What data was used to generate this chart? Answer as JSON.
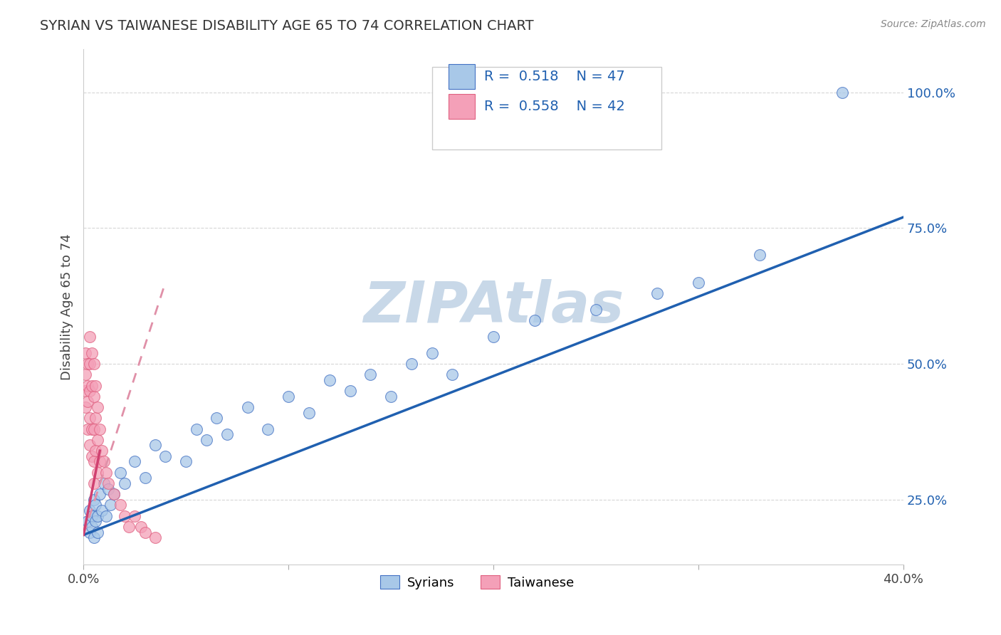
{
  "title": "SYRIAN VS TAIWANESE DISABILITY AGE 65 TO 74 CORRELATION CHART",
  "source_text": "Source: ZipAtlas.com",
  "ylabel": "Disability Age 65 to 74",
  "xlim": [
    0.0,
    0.4
  ],
  "ylim": [
    0.13,
    1.08
  ],
  "xtick_vals": [
    0.0,
    0.1,
    0.2,
    0.3,
    0.4
  ],
  "xtick_labels": [
    "0.0%",
    "",
    "",
    "",
    "40.0%"
  ],
  "ytick_vals": [
    0.25,
    0.5,
    0.75,
    1.0
  ],
  "ytick_labels": [
    "25.0%",
    "50.0%",
    "75.0%",
    "100.0%"
  ],
  "r_syrian": 0.518,
  "n_syrian": 47,
  "r_taiwanese": 0.558,
  "n_taiwanese": 42,
  "blue_scatter_color": "#a8c8e8",
  "blue_edge_color": "#4472c4",
  "pink_scatter_color": "#f4a0b8",
  "pink_edge_color": "#e06080",
  "blue_line_color": "#2060b0",
  "pink_line_color": "#d04070",
  "pink_dash_color": "#e090a8",
  "watermark": "ZIPAtlas",
  "watermark_color": "#c8d8e8",
  "legend_blue_fill": "#a8c8e8",
  "legend_pink_fill": "#f4a0b8",
  "legend_text_color": "#2060b0",
  "syrian_x": [
    0.002,
    0.003,
    0.003,
    0.004,
    0.004,
    0.005,
    0.005,
    0.006,
    0.006,
    0.007,
    0.007,
    0.008,
    0.009,
    0.01,
    0.011,
    0.012,
    0.013,
    0.015,
    0.018,
    0.02,
    0.025,
    0.03,
    0.035,
    0.04,
    0.05,
    0.055,
    0.06,
    0.065,
    0.07,
    0.08,
    0.09,
    0.1,
    0.11,
    0.12,
    0.13,
    0.14,
    0.15,
    0.16,
    0.17,
    0.18,
    0.2,
    0.22,
    0.25,
    0.28,
    0.3,
    0.33,
    0.37
  ],
  "syrian_y": [
    0.21,
    0.23,
    0.19,
    0.22,
    0.2,
    0.25,
    0.18,
    0.24,
    0.21,
    0.22,
    0.19,
    0.26,
    0.23,
    0.28,
    0.22,
    0.27,
    0.24,
    0.26,
    0.3,
    0.28,
    0.32,
    0.29,
    0.35,
    0.33,
    0.32,
    0.38,
    0.36,
    0.4,
    0.37,
    0.42,
    0.38,
    0.44,
    0.41,
    0.47,
    0.45,
    0.48,
    0.44,
    0.5,
    0.52,
    0.48,
    0.55,
    0.58,
    0.6,
    0.63,
    0.65,
    0.7,
    1.0
  ],
  "taiwanese_x": [
    0.001,
    0.001,
    0.001,
    0.001,
    0.002,
    0.002,
    0.002,
    0.002,
    0.003,
    0.003,
    0.003,
    0.003,
    0.003,
    0.004,
    0.004,
    0.004,
    0.004,
    0.005,
    0.005,
    0.005,
    0.005,
    0.005,
    0.006,
    0.006,
    0.006,
    0.007,
    0.007,
    0.007,
    0.008,
    0.008,
    0.009,
    0.01,
    0.011,
    0.012,
    0.015,
    0.018,
    0.02,
    0.022,
    0.025,
    0.028,
    0.03,
    0.035
  ],
  "taiwanese_y": [
    0.52,
    0.48,
    0.45,
    0.42,
    0.5,
    0.46,
    0.43,
    0.38,
    0.55,
    0.5,
    0.45,
    0.4,
    0.35,
    0.52,
    0.46,
    0.38,
    0.33,
    0.5,
    0.44,
    0.38,
    0.32,
    0.28,
    0.46,
    0.4,
    0.34,
    0.42,
    0.36,
    0.3,
    0.38,
    0.32,
    0.34,
    0.32,
    0.3,
    0.28,
    0.26,
    0.24,
    0.22,
    0.2,
    0.22,
    0.2,
    0.19,
    0.18
  ],
  "syr_line_x0": 0.0,
  "syr_line_x1": 0.4,
  "syr_line_y0": 0.185,
  "syr_line_y1": 0.77,
  "tai_line_x0": 0.0,
  "tai_line_x1": 0.04,
  "tai_line_y0": 0.185,
  "tai_line_y1": 0.65
}
